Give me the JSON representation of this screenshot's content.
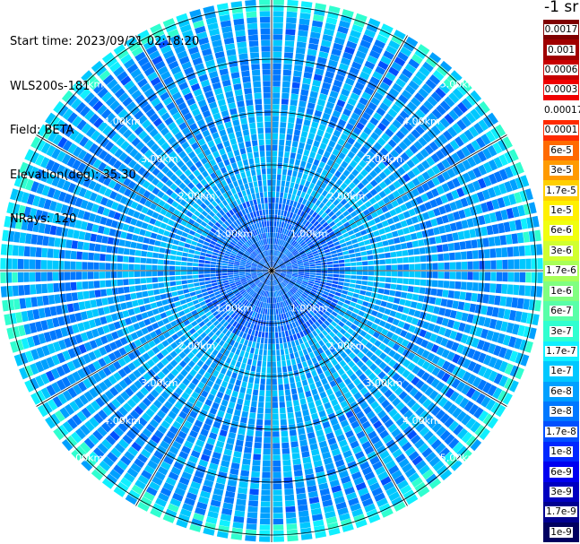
{
  "header": {
    "start_time": "Start time: 2023/09/21 02:18:20",
    "instrument": "WLS200s-181",
    "field": "Field: BETA",
    "elevation": "Elevation(deg): 35.30",
    "nrays": "NRays: 120"
  },
  "colorbar": {
    "title": "-1 sr",
    "labels": [
      "0.0017",
      "0.001",
      "0.0006",
      "0.0003",
      "0.00017",
      "0.0001",
      "6e-5",
      "3e-5",
      "1.7e-5",
      "1e-5",
      "6e-6",
      "3e-6",
      "1.7e-6",
      "1e-6",
      "6e-7",
      "3e-7",
      "1.7e-7",
      "1e-7",
      "6e-8",
      "3e-8",
      "1.7e-8",
      "1e-8",
      "6e-9",
      "3e-9",
      "1.7e-9",
      "1e-9"
    ],
    "colors": [
      "#800000",
      "#a00000",
      "#c80000",
      "#f00000",
      "#ffffff",
      "#ff2a00",
      "#ff6a00",
      "#ff9a00",
      "#ffcf00",
      "#fff000",
      "#f0ff10",
      "#d0ff30",
      "#a8ff58",
      "#80ff80",
      "#58ffa8",
      "#30ffd0",
      "#10f0ff",
      "#00c8ff",
      "#00a0ff",
      "#0078ff",
      "#0050ff",
      "#0028ff",
      "#0000f0",
      "#0000c0",
      "#000090",
      "#000060"
    ]
  },
  "chart_data": {
    "type": "heatmap",
    "subtype": "ppi-polar",
    "field": "BETA",
    "units": "sr-1",
    "rays": 120,
    "range_rings_km": [
      1,
      2,
      3,
      4,
      5
    ],
    "range_ring_labels": [
      "1.00km",
      "2.00km",
      "3.00km",
      "4.00km",
      "5.00km"
    ],
    "max_range_km": 5.7,
    "spokes_deg": [
      0,
      30,
      60,
      90,
      120,
      150,
      180,
      210,
      240,
      270,
      300,
      330
    ],
    "dominant_range": [
      "3e-8",
      "1.7e-7"
    ],
    "near_range_values": [
      "1e-8",
      "3e-8"
    ],
    "outer_edge_values": [
      "6e-7",
      "1e-6"
    ]
  }
}
